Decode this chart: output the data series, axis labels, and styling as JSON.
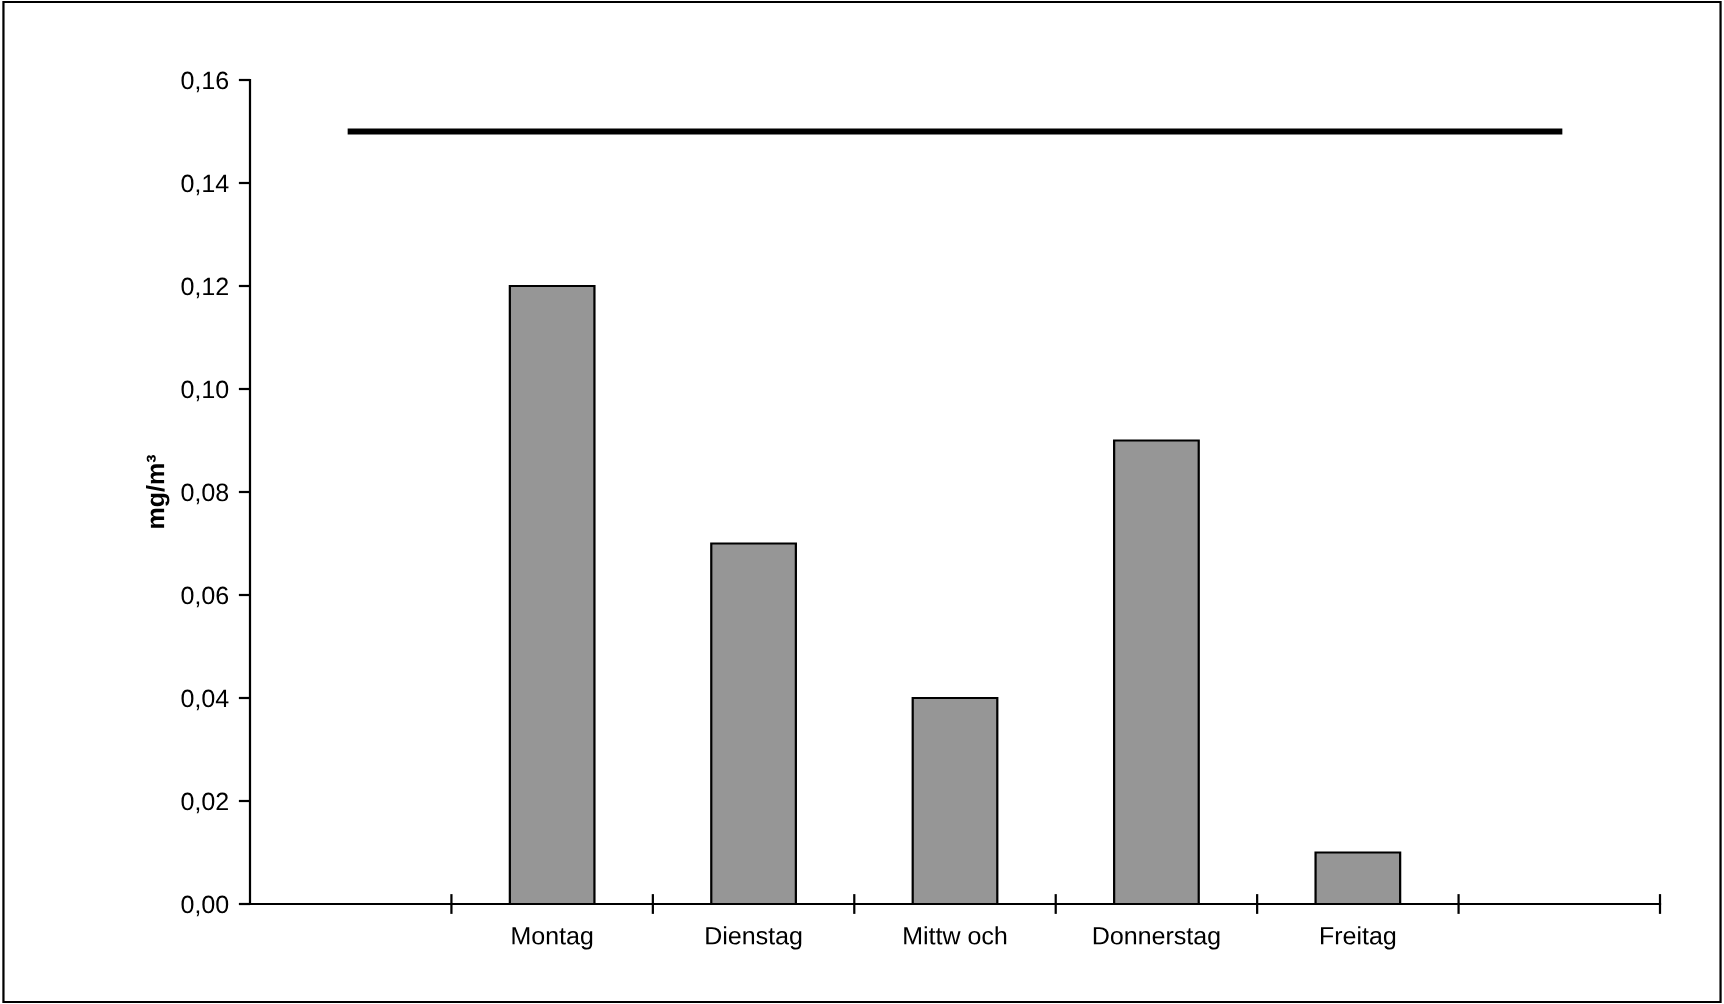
{
  "chart_data": {
    "type": "bar",
    "ylabel": "mg/m³",
    "categories": [
      null,
      "Montag",
      "Dienstag",
      "Mittw och",
      "Donnerstag",
      "Freitag",
      null
    ],
    "series": [
      {
        "color": "#969696",
        "values": [
          null,
          0.12,
          0.07,
          0.04,
          0.09,
          0.01,
          null
        ]
      },
      {
        "type": "line",
        "color": "#000000",
        "values": [
          0.15,
          0.15,
          0.15,
          0.15,
          0.15,
          0.15,
          0.15
        ]
      }
    ],
    "ylim": [
      0,
      0.16
    ],
    "yticks": [
      {
        "value": 0,
        "label": "0,00"
      },
      {
        "value": 0.02,
        "label": "0,02"
      },
      {
        "value": 0.04,
        "label": "0,04"
      },
      {
        "value": 0.06,
        "label": "0,06"
      },
      {
        "value": 0.08,
        "label": "0,08"
      },
      {
        "value": 0.1,
        "label": "0,10"
      },
      {
        "value": 0.12,
        "label": "0,12"
      },
      {
        "value": 0.14,
        "label": "0,14"
      },
      {
        "value": 0.16,
        "label": "0,16"
      }
    ],
    "grid": false,
    "marker": "none",
    "line_style": "solid"
  }
}
